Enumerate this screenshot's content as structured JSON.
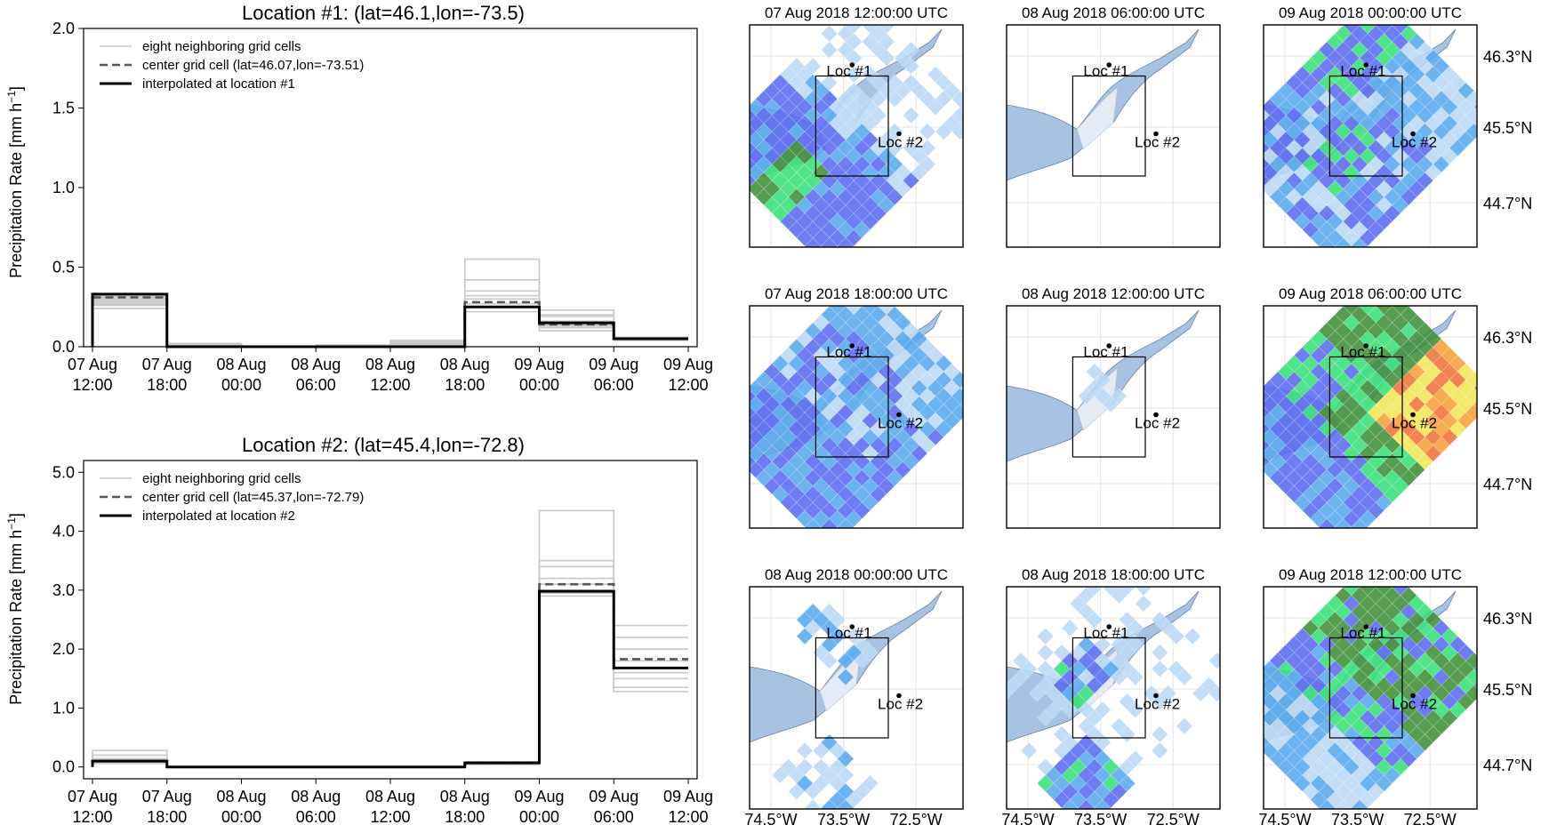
{
  "chart_data": [
    {
      "type": "line",
      "title": "Location #1: (lat=46.1,lon=-73.5)",
      "ylabel": "Precipitation Rate [mm h",
      "ylabel_sup": "−1",
      "ylabel_close": "]",
      "ylim": [
        0,
        2.0
      ],
      "yticks": [
        "0.0",
        "0.5",
        "1.0",
        "1.5",
        "2.0"
      ],
      "ytick_values": [
        0,
        0.5,
        1.0,
        1.5,
        2.0
      ],
      "xticks": [
        [
          "07 Aug",
          "12:00"
        ],
        [
          "07 Aug",
          "18:00"
        ],
        [
          "08 Aug",
          "00:00"
        ],
        [
          "08 Aug",
          "06:00"
        ],
        [
          "08 Aug",
          "12:00"
        ],
        [
          "08 Aug",
          "18:00"
        ],
        [
          "09 Aug",
          "00:00"
        ],
        [
          "09 Aug",
          "06:00"
        ],
        [
          "09 Aug",
          "12:00"
        ]
      ],
      "legend": [
        {
          "label": "eight neighboring grid cells",
          "style": "neighbor"
        },
        {
          "label": "center grid cell (lat=46.07,lon=-73.51)",
          "style": "center"
        },
        {
          "label": "interpolated at location #1",
          "style": "interp"
        }
      ],
      "series": [
        {
          "role": "neighbor",
          "values": [
            0.24,
            0.0,
            0.0,
            0.0,
            0.0,
            0.22,
            0.12,
            0.04
          ]
        },
        {
          "role": "neighbor",
          "values": [
            0.26,
            0.01,
            0.0,
            0.0,
            0.01,
            0.3,
            0.14,
            0.05
          ]
        },
        {
          "role": "neighbor",
          "values": [
            0.28,
            0.01,
            0.0,
            0.0,
            0.02,
            0.35,
            0.16,
            0.05
          ]
        },
        {
          "role": "neighbor",
          "values": [
            0.3,
            0.02,
            0.0,
            0.01,
            0.03,
            0.42,
            0.19,
            0.06
          ]
        },
        {
          "role": "neighbor",
          "values": [
            0.31,
            0.02,
            0.0,
            0.01,
            0.04,
            0.55,
            0.23,
            0.06
          ]
        },
        {
          "role": "neighbor",
          "values": [
            0.29,
            0.01,
            0.0,
            0.0,
            0.03,
            0.27,
            0.1,
            0.04
          ]
        },
        {
          "role": "neighbor",
          "values": [
            0.27,
            0.0,
            0.0,
            0.0,
            0.01,
            0.25,
            0.13,
            0.05
          ]
        },
        {
          "role": "neighbor",
          "values": [
            0.32,
            0.01,
            0.0,
            0.0,
            0.02,
            0.32,
            0.2,
            0.06
          ]
        },
        {
          "role": "center",
          "values": [
            0.31,
            0.0,
            0.0,
            0.0,
            0.0,
            0.28,
            0.14,
            0.05
          ]
        },
        {
          "role": "interp",
          "values": [
            0.33,
            0.0,
            0.0,
            0.0,
            0.0,
            0.25,
            0.15,
            0.05
          ]
        }
      ]
    },
    {
      "type": "line",
      "title": "Location #2: (lat=45.4,lon=-72.8)",
      "ylabel": "Precipitation Rate [mm h",
      "ylabel_sup": "−1",
      "ylabel_close": "]",
      "ylim": [
        -0.2,
        5.2
      ],
      "yticks": [
        "0.0",
        "1.0",
        "2.0",
        "3.0",
        "4.0",
        "5.0"
      ],
      "ytick_values": [
        0,
        1.0,
        2.0,
        3.0,
        4.0,
        5.0
      ],
      "xticks": [
        [
          "07 Aug",
          "12:00"
        ],
        [
          "07 Aug",
          "18:00"
        ],
        [
          "08 Aug",
          "00:00"
        ],
        [
          "08 Aug",
          "06:00"
        ],
        [
          "08 Aug",
          "12:00"
        ],
        [
          "08 Aug",
          "18:00"
        ],
        [
          "09 Aug",
          "00:00"
        ],
        [
          "09 Aug",
          "06:00"
        ],
        [
          "09 Aug",
          "12:00"
        ]
      ],
      "legend": [
        {
          "label": "eight neighboring grid cells",
          "style": "neighbor"
        },
        {
          "label": "center grid cell (lat=45.37,lon=-72.79)",
          "style": "center"
        },
        {
          "label": "interpolated at location #2",
          "style": "interp"
        }
      ],
      "series": [
        {
          "role": "neighbor",
          "values": [
            0.28,
            0.0,
            0.0,
            0.0,
            0.0,
            0.09,
            4.35,
            2.4
          ]
        },
        {
          "role": "neighbor",
          "values": [
            0.2,
            0.0,
            0.0,
            0.0,
            0.0,
            0.08,
            3.5,
            2.2
          ]
        },
        {
          "role": "neighbor",
          "values": [
            0.12,
            0.0,
            0.0,
            0.0,
            0.0,
            0.07,
            3.4,
            2.0
          ]
        },
        {
          "role": "neighbor",
          "values": [
            0.08,
            0.0,
            0.0,
            0.0,
            0.0,
            0.05,
            3.2,
            1.6
          ]
        },
        {
          "role": "neighbor",
          "values": [
            0.1,
            0.0,
            0.0,
            0.0,
            0.0,
            0.06,
            3.0,
            1.5
          ]
        },
        {
          "role": "neighbor",
          "values": [
            0.06,
            0.0,
            0.0,
            0.0,
            0.0,
            0.04,
            2.95,
            1.35
          ]
        },
        {
          "role": "neighbor",
          "values": [
            0.09,
            0.0,
            0.0,
            0.0,
            0.0,
            0.05,
            2.9,
            1.28
          ]
        },
        {
          "role": "neighbor",
          "values": [
            0.14,
            0.0,
            0.0,
            0.0,
            0.0,
            0.06,
            3.1,
            1.8
          ]
        },
        {
          "role": "center",
          "values": [
            0.1,
            0.0,
            0.0,
            0.0,
            0.0,
            0.07,
            3.1,
            1.83
          ]
        },
        {
          "role": "interp",
          "values": [
            0.1,
            0.0,
            0.0,
            0.0,
            0.0,
            0.07,
            2.98,
            1.68
          ]
        }
      ]
    },
    {
      "type": "heatmap",
      "maps": [
        {
          "title": "07 Aug 2018 12:00:00 UTC",
          "scheme": "p0712"
        },
        {
          "title": "08 Aug 2018 06:00:00 UTC",
          "scheme": "p0806"
        },
        {
          "title": "09 Aug 2018 00:00:00 UTC",
          "scheme": "p0900"
        },
        {
          "title": "07 Aug 2018 18:00:00 UTC",
          "scheme": "p0718"
        },
        {
          "title": "08 Aug 2018 12:00:00 UTC",
          "scheme": "p0812"
        },
        {
          "title": "09 Aug 2018 06:00:00 UTC",
          "scheme": "p0906"
        },
        {
          "title": "08 Aug 2018 00:00:00 UTC",
          "scheme": "p0800"
        },
        {
          "title": "08 Aug 2018 18:00:00 UTC",
          "scheme": "p0818"
        },
        {
          "title": "09 Aug 2018 12:00:00 UTC",
          "scheme": "p0912"
        }
      ],
      "loc1_label": "Loc #1",
      "loc2_label": "Loc #2",
      "lat_labels": [
        "46.3°N",
        "45.5°N",
        "44.7°N"
      ],
      "lon_labels": [
        "74.5°W",
        "73.5°W",
        "72.5°W"
      ]
    }
  ],
  "colors": {
    "neighbor": "#c8c8c8",
    "center": "#555555",
    "interp": "#000000",
    "water": "#9ab8dc",
    "water_edge": "#4f6f99",
    "light_blue": "#bcd9f5",
    "mid_blue": "#5aa9ee",
    "blue": "#5b6cf0",
    "green": "#39e07a",
    "dark_green": "#3f8f3a",
    "yellow": "#f2e85a",
    "orange": "#f6a13d",
    "red_orange": "#f0743c"
  }
}
